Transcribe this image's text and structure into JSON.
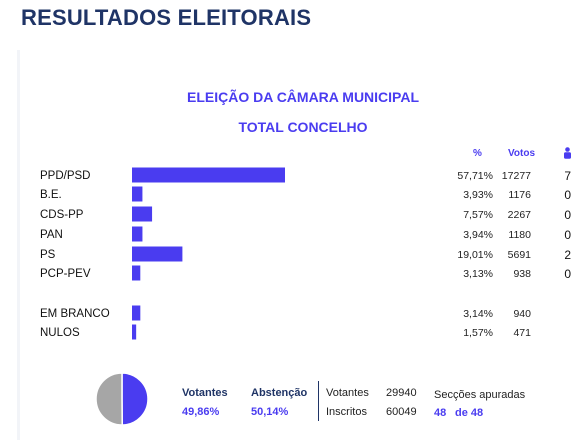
{
  "page_title": "RESULTADOS ELEITORAIS",
  "chart_title": "ELEIÇÃO DA CÂMARA MUNICIPAL",
  "chart_subtitle": "TOTAL CONCELHO",
  "columns": {
    "pct": "%",
    "votes": "Votos",
    "seats_icon": "person-icon"
  },
  "colors": {
    "bar": "#4a3cf0",
    "title": "#1f3466",
    "accent": "#4a3cf0",
    "pie_rest": "#a6a6a6"
  },
  "chart_data": {
    "type": "bar",
    "orientation": "horizontal",
    "xlim": [
      0,
      100
    ],
    "grid": false,
    "categories": [
      "PPD/PSD",
      "B.E.",
      "CDS-PP",
      "PAN",
      "PS",
      "PCP-PEV",
      "EM BRANCO",
      "NULOS"
    ],
    "values": [
      57.71,
      3.93,
      7.57,
      3.94,
      19.01,
      3.13,
      3.14,
      1.57
    ],
    "rows": [
      {
        "party": "PPD/PSD",
        "pct": 57.71,
        "pct_label": "57,71%",
        "votes": "17277",
        "seats": "7"
      },
      {
        "party": "B.E.",
        "pct": 3.93,
        "pct_label": "3,93%",
        "votes": "1176",
        "seats": "0"
      },
      {
        "party": "CDS-PP",
        "pct": 7.57,
        "pct_label": "7,57%",
        "votes": "2267",
        "seats": "0"
      },
      {
        "party": "PAN",
        "pct": 3.94,
        "pct_label": "3,94%",
        "votes": "1180",
        "seats": "0"
      },
      {
        "party": "PS",
        "pct": 19.01,
        "pct_label": "19,01%",
        "votes": "5691",
        "seats": "2"
      },
      {
        "party": "PCP-PEV",
        "pct": 3.13,
        "pct_label": "3,13%",
        "votes": "938",
        "seats": "0"
      },
      {
        "party": "EM BRANCO",
        "pct": 3.14,
        "pct_label": "3,14%",
        "votes": "940",
        "seats": ""
      },
      {
        "party": "NULOS",
        "pct": 1.57,
        "pct_label": "1,57%",
        "votes": "471",
        "seats": ""
      }
    ]
  },
  "summary": {
    "turnout_pie": {
      "votantes_pct": 49.86,
      "abstencao_pct": 50.14
    },
    "votantes_label": "Votantes",
    "votantes_pct": "49,86%",
    "abstencao_label": "Abstenção",
    "abstencao_pct": "50,14%",
    "votantes_count_label": "Votantes",
    "votantes_count": "29940",
    "inscritos_label": "Inscritos",
    "inscritos_count": "60049",
    "seccoes_label": "Secções apuradas",
    "seccoes_done": "48",
    "seccoes_of": "de 48"
  }
}
